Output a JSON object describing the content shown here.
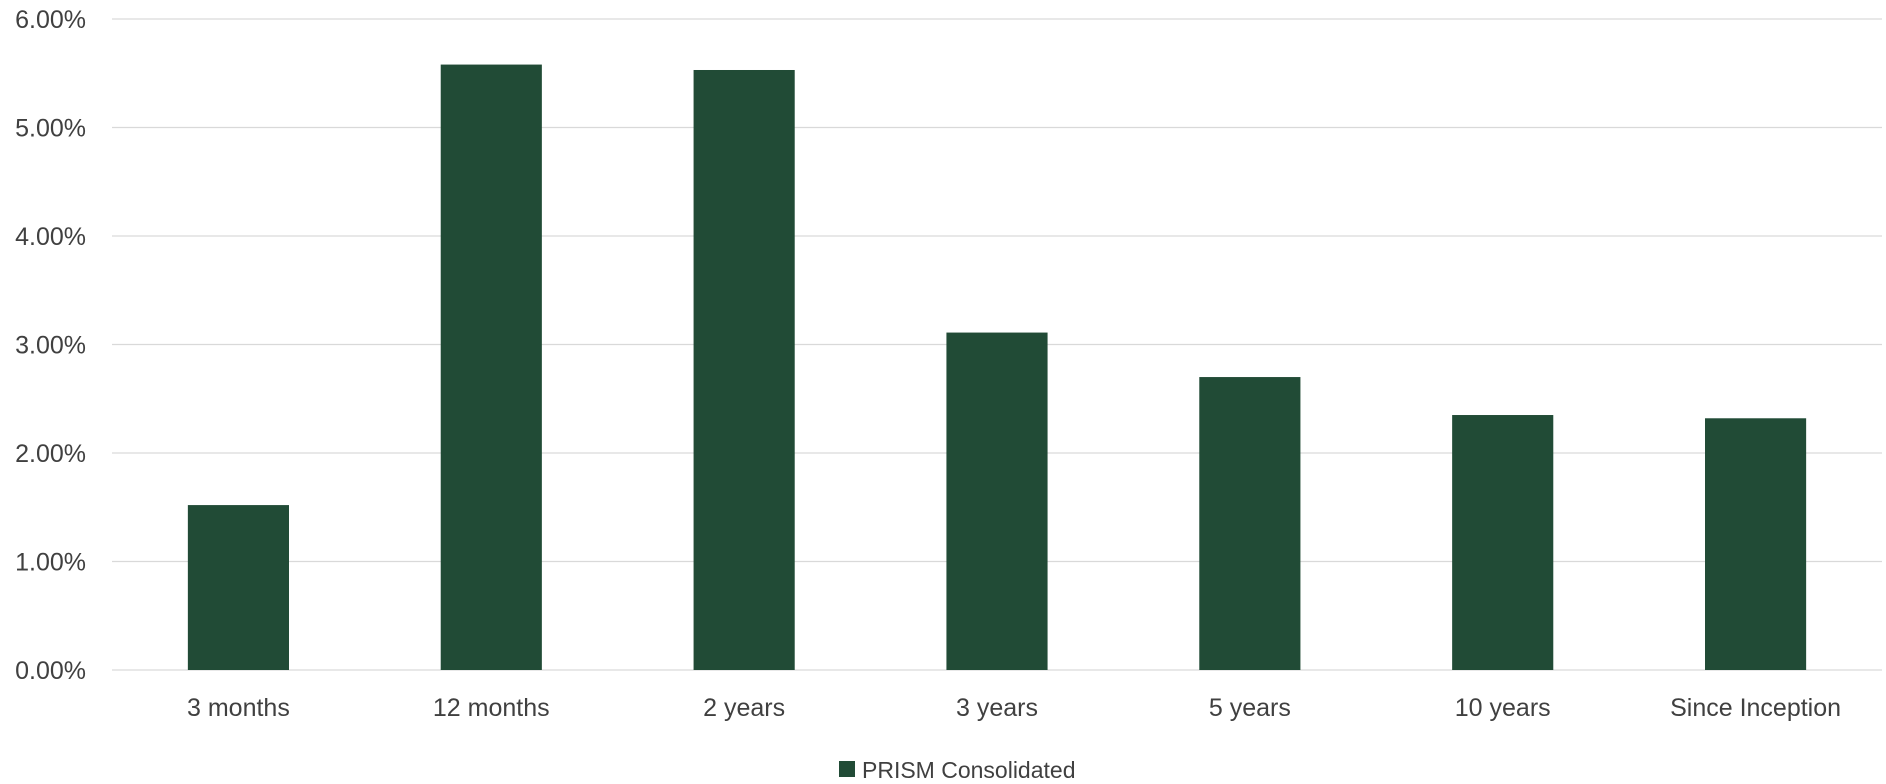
{
  "chart_data": {
    "type": "bar",
    "categories": [
      "3 months",
      "12 months",
      "2 years",
      "3 years",
      "5 years",
      "10 years",
      "Since Inception"
    ],
    "series": [
      {
        "name": "PRISM Consolidated",
        "values": [
          0.0152,
          0.0558,
          0.0553,
          0.0311,
          0.027,
          0.0235,
          0.0232
        ],
        "color": "#214b36"
      }
    ],
    "title": "",
    "xlabel": "",
    "ylabel": "",
    "ylim": [
      0,
      0.06
    ],
    "yticks": [
      0,
      0.01,
      0.02,
      0.03,
      0.04,
      0.05,
      0.06
    ],
    "ytick_labels": [
      "0.00%",
      "1.00%",
      "2.00%",
      "3.00%",
      "4.00%",
      "5.00%",
      "6.00%"
    ],
    "grid": true,
    "gridline_color": "#d9d9d9",
    "legend_position": "bottom-center"
  }
}
